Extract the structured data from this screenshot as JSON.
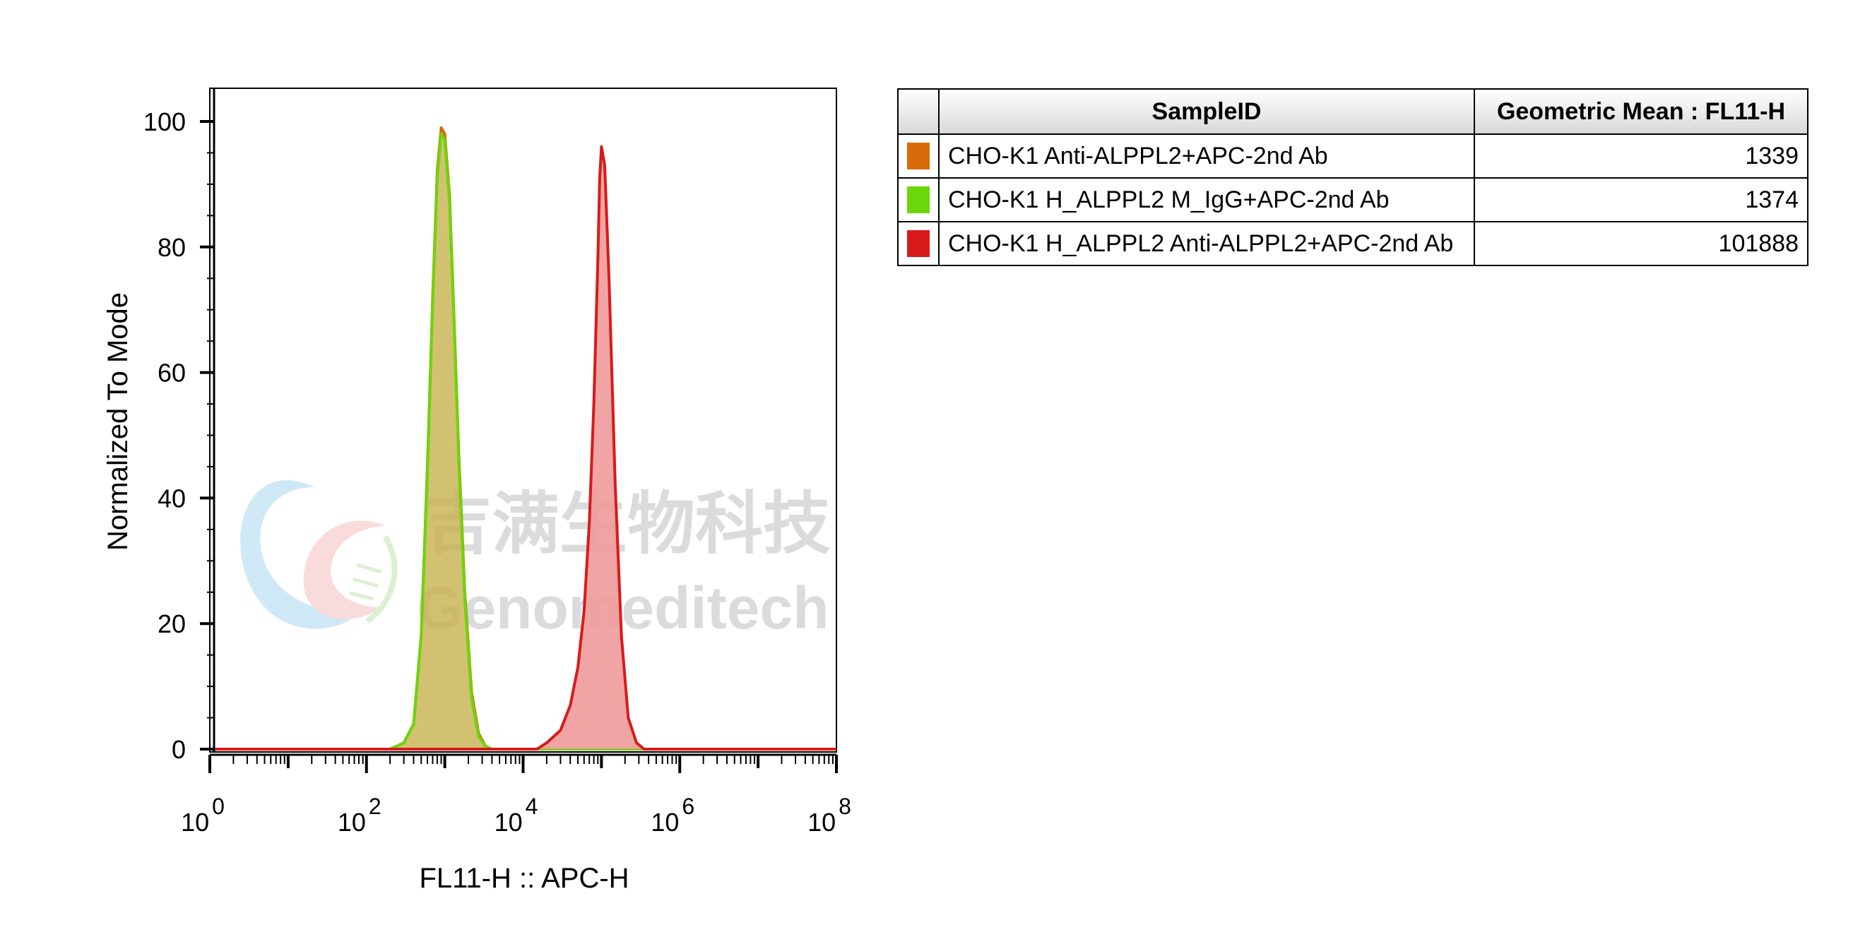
{
  "chart_data": {
    "type": "histogram",
    "xlabel": "FL11-H :: APC-H",
    "ylabel": "Normalized To Mode",
    "x_scale": "log",
    "xlim": [
      1,
      100000000
    ],
    "ylim": [
      0,
      100
    ],
    "x_ticks": [
      {
        "base": "10",
        "exp": "0",
        "value": 1
      },
      {
        "base": "10",
        "exp": "2",
        "value": 100
      },
      {
        "base": "10",
        "exp": "4",
        "value": 10000
      },
      {
        "base": "10",
        "exp": "6",
        "value": 1000000
      },
      {
        "base": "10",
        "exp": "8",
        "value": 100000000
      }
    ],
    "y_ticks": [
      "0",
      "20",
      "40",
      "60",
      "80",
      "100"
    ],
    "series": [
      {
        "name": "CHO-K1 Anti-ALPPL2+APC-2nd Ab",
        "color": "#d86b0a",
        "fill": "#c9b04e",
        "points": [
          [
            200,
            0
          ],
          [
            300,
            1
          ],
          [
            400,
            4
          ],
          [
            500,
            18
          ],
          [
            600,
            45
          ],
          [
            700,
            72
          ],
          [
            800,
            92
          ],
          [
            900,
            99
          ],
          [
            1000,
            98
          ],
          [
            1150,
            88
          ],
          [
            1300,
            70
          ],
          [
            1500,
            48
          ],
          [
            1800,
            25
          ],
          [
            2200,
            9
          ],
          [
            2700,
            2.5
          ],
          [
            3300,
            0.5
          ],
          [
            4000,
            0
          ]
        ]
      },
      {
        "name": "CHO-K1 H_ALPPL2 M_IgG+APC-2nd Ab",
        "color": "#6bd60a",
        "fill": "#c9b04e",
        "points": [
          [
            200,
            0
          ],
          [
            300,
            1
          ],
          [
            400,
            4
          ],
          [
            500,
            18
          ],
          [
            600,
            44
          ],
          [
            700,
            71
          ],
          [
            800,
            91
          ],
          [
            900,
            98
          ],
          [
            1000,
            97
          ],
          [
            1150,
            87
          ],
          [
            1300,
            69
          ],
          [
            1500,
            47
          ],
          [
            1800,
            24
          ],
          [
            2200,
            8
          ],
          [
            2700,
            2
          ],
          [
            3300,
            0.5
          ],
          [
            4000,
            0
          ]
        ]
      },
      {
        "name": "CHO-K1 H_ALPPL2 Anti-ALPPL2+APC-2nd Ab",
        "color": "#d91a1a",
        "fill": "#f09a9a",
        "points": [
          [
            15000,
            0
          ],
          [
            20000,
            1
          ],
          [
            30000,
            3
          ],
          [
            40000,
            7
          ],
          [
            50000,
            13
          ],
          [
            60000,
            22
          ],
          [
            70000,
            36
          ],
          [
            80000,
            55
          ],
          [
            90000,
            78
          ],
          [
            95000,
            91
          ],
          [
            100000,
            96
          ],
          [
            110000,
            93
          ],
          [
            125000,
            75
          ],
          [
            150000,
            42
          ],
          [
            180000,
            18
          ],
          [
            220000,
            5
          ],
          [
            280000,
            1
          ],
          [
            350000,
            0
          ]
        ]
      }
    ]
  },
  "watermark": {
    "chinese": "吉满生物科技",
    "english": "Genomeditech"
  },
  "table": {
    "headers": [
      "SampleID",
      "Geometric Mean : FL11-H"
    ],
    "rows": [
      {
        "color": "#d86b0a",
        "sample": "CHO-K1 Anti-ALPPL2+APC-2nd Ab",
        "mean": "1339"
      },
      {
        "color": "#6bd60a",
        "sample": "CHO-K1 H_ALPPL2 M_IgG+APC-2nd Ab",
        "mean": "1374"
      },
      {
        "color": "#d91a1a",
        "sample": "CHO-K1 H_ALPPL2 Anti-ALPPL2+APC-2nd Ab",
        "mean": "101888"
      }
    ]
  }
}
